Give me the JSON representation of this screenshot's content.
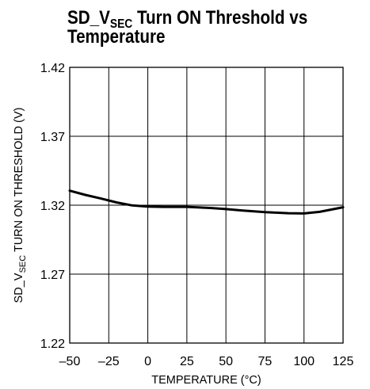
{
  "chart_data": {
    "type": "line",
    "title_parts": {
      "pre": "SD_V",
      "sub": "SEC",
      "post": " Turn ON Threshold vs",
      "line2": "Temperature"
    },
    "xlabel": "TEMPERATURE (°C)",
    "ylabel_parts": {
      "pre": "SD_V",
      "sub": "SEC",
      "post": " TURN ON THRESHOLD (V)"
    },
    "xlim": [
      -50,
      125
    ],
    "ylim": [
      1.22,
      1.42
    ],
    "x_ticks": [
      "–50",
      "–25",
      "0",
      "25",
      "50",
      "75",
      "100",
      "125"
    ],
    "y_ticks": [
      "1.22",
      "1.27",
      "1.32",
      "1.37",
      "1.42"
    ],
    "grid": true,
    "series": [
      {
        "x": [
          -50,
          -40,
          -30,
          -20,
          -10,
          0,
          10,
          25,
          40,
          50,
          60,
          75,
          90,
          100,
          110,
          125
        ],
        "y": [
          1.3305,
          1.3275,
          1.3248,
          1.322,
          1.3198,
          1.319,
          1.3188,
          1.3188,
          1.318,
          1.3172,
          1.3162,
          1.315,
          1.3142,
          1.314,
          1.3152,
          1.3185
        ]
      }
    ]
  }
}
